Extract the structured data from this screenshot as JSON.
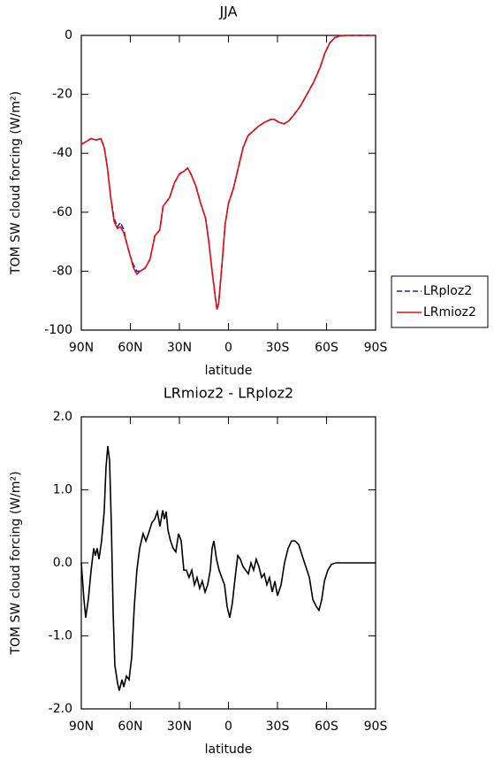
{
  "chart_data": [
    {
      "type": "line",
      "title": "JJA",
      "xlabel": "latitude",
      "ylabel": "TOM SW cloud forcing (W/m²)",
      "xlim": [
        90,
        -90
      ],
      "xticks": [
        {
          "value": 90,
          "label": "90N"
        },
        {
          "value": 60,
          "label": "60N"
        },
        {
          "value": 30,
          "label": "30N"
        },
        0,
        {
          "value": -30,
          "label": "30S"
        },
        {
          "value": -60,
          "label": "60S"
        },
        {
          "value": -90,
          "label": "90S"
        }
      ],
      "ylim": [
        -100,
        0
      ],
      "yticks": [
        0,
        -20,
        -40,
        -60,
        -80,
        -100
      ],
      "legend": "right",
      "x": [
        90,
        87,
        84,
        81,
        78,
        76,
        74,
        72,
        70,
        68,
        66,
        64,
        62,
        60,
        58,
        56,
        54,
        51,
        48,
        45,
        42,
        40,
        36,
        33,
        30,
        27,
        25,
        23,
        20,
        17,
        14,
        12,
        10,
        8,
        7,
        6,
        4,
        2,
        0,
        -3,
        -6,
        -9,
        -12,
        -15,
        -18,
        -22,
        -26,
        -28,
        -31,
        -34,
        -37,
        -40,
        -44,
        -48,
        -52,
        -56,
        -59,
        -62,
        -65,
        -68,
        -72,
        -80,
        -90
      ],
      "series": [
        {
          "name": "LRploz2",
          "color": "#1f1fd0",
          "linestyle": "dashed",
          "values": [
            -37,
            -36,
            -35,
            -35.5,
            -35,
            -38,
            -45,
            -55,
            -62,
            -65,
            -63.5,
            -66,
            -71,
            -75,
            -78,
            -80,
            -80,
            -79,
            -76,
            -68,
            -66,
            -58,
            -55,
            -50,
            -47,
            -46,
            -45,
            -47,
            -51,
            -57,
            -62,
            -70,
            -80,
            -89,
            -93,
            -91,
            -78,
            -64,
            -57,
            -52,
            -45,
            -38,
            -34,
            -32.5,
            -31,
            -29.5,
            -28.5,
            -28.5,
            -29.5,
            -30,
            -29,
            -27,
            -24,
            -20,
            -16,
            -11,
            -6,
            -2.5,
            -0.8,
            -0.2,
            0,
            0,
            0
          ]
        },
        {
          "name": "LRmioz2",
          "color": "#e01010",
          "linestyle": "solid",
          "values": [
            -37,
            -36,
            -35,
            -35.5,
            -35,
            -38,
            -45,
            -55,
            -63,
            -65.5,
            -65,
            -67,
            -71,
            -75,
            -79,
            -81,
            -80,
            -79,
            -76,
            -68,
            -66,
            -58,
            -55,
            -50,
            -47,
            -46,
            -45,
            -47,
            -51,
            -57,
            -62,
            -70,
            -80,
            -89,
            -93,
            -91,
            -78,
            -64,
            -57,
            -52,
            -45,
            -38,
            -34,
            -32.5,
            -31,
            -29.5,
            -28.5,
            -28.5,
            -29.5,
            -30,
            -29,
            -27,
            -24,
            -20,
            -16,
            -11,
            -6,
            -2.5,
            -0.8,
            -0.2,
            0,
            0,
            0
          ]
        }
      ]
    },
    {
      "type": "line",
      "title": "LRmioz2 - LRploz2",
      "xlabel": "latitude",
      "ylabel": "TOM SW cloud forcing (W/m²)",
      "xlim": [
        90,
        -90
      ],
      "xticks": [
        {
          "value": 90,
          "label": "90N"
        },
        {
          "value": 60,
          "label": "60N"
        },
        {
          "value": 30,
          "label": "30N"
        },
        0,
        {
          "value": -30,
          "label": "30S"
        },
        {
          "value": -60,
          "label": "60S"
        },
        {
          "value": -90,
          "label": "90S"
        }
      ],
      "ylim": [
        -2,
        2
      ],
      "yticks": [
        {
          "value": 2,
          "label": "2.0"
        },
        {
          "value": 1,
          "label": "1.0"
        },
        {
          "value": 0,
          "label": "0.0"
        },
        {
          "value": -1,
          "label": "-1.0"
        },
        {
          "value": -2,
          "label": "-2.0"
        }
      ],
      "x": [
        90,
        88.4,
        87.3,
        85.7,
        84,
        82.4,
        81.4,
        80.3,
        79.2,
        77.6,
        76,
        74.9,
        73.8,
        72.7,
        71.6,
        70.5,
        69.5,
        67.8,
        66.8,
        65.1,
        64,
        62.4,
        60.8,
        59.2,
        57.6,
        56,
        54.3,
        52.2,
        50.5,
        48.9,
        46.8,
        45.1,
        43.5,
        41.9,
        40.2,
        39.2,
        38.1,
        37,
        35.4,
        33.8,
        32.2,
        30.5,
        28.9,
        27.3,
        25.7,
        24.1,
        22.4,
        20.8,
        19.2,
        17.6,
        16,
        14.3,
        12.7,
        11.1,
        10,
        8.9,
        7.3,
        5.7,
        4.1,
        2.4,
        0.8,
        -0.8,
        -2.4,
        -4.1,
        -5.7,
        -7.3,
        -8.9,
        -10.5,
        -12.2,
        -13.8,
        -15.4,
        -17,
        -18.6,
        -20.3,
        -21.9,
        -23.5,
        -25.1,
        -26.8,
        -28.4,
        -30,
        -32.2,
        -34.3,
        -36.5,
        -38.6,
        -40.8,
        -43,
        -45.1,
        -47.3,
        -49.5,
        -51.6,
        -53.8,
        -55.4,
        -57.1,
        -58.7,
        -60.8,
        -63,
        -65.7,
        -71,
        -90
      ],
      "series": [
        {
          "color": "#000000",
          "linestyle": "solid",
          "values": [
            0,
            -0.5,
            -0.75,
            -0.5,
            -0.1,
            0.2,
            0.1,
            0.2,
            0.05,
            0.3,
            0.7,
            1.3,
            1.6,
            1.4,
            0.5,
            -0.7,
            -1.4,
            -1.65,
            -1.75,
            -1.6,
            -1.7,
            -1.55,
            -1.6,
            -1.3,
            -0.6,
            -0.1,
            0.2,
            0.4,
            0.3,
            0.4,
            0.55,
            0.6,
            0.7,
            0.5,
            0.72,
            0.6,
            0.7,
            0.45,
            0.3,
            0.2,
            0.15,
            0.4,
            0.3,
            -0.1,
            -0.1,
            -0.2,
            -0.1,
            -0.3,
            -0.2,
            -0.35,
            -0.25,
            -0.4,
            -0.3,
            -0.1,
            0.2,
            0.3,
            0.05,
            -0.1,
            -0.2,
            -0.3,
            -0.6,
            -0.75,
            -0.55,
            -0.2,
            0.1,
            0.05,
            -0.05,
            -0.1,
            -0.15,
            0,
            -0.1,
            0.05,
            -0.05,
            -0.2,
            -0.15,
            -0.3,
            -0.2,
            -0.4,
            -0.25,
            -0.45,
            -0.3,
            0,
            0.2,
            0.3,
            0.3,
            0.25,
            0.1,
            -0.05,
            -0.2,
            -0.5,
            -0.6,
            -0.65,
            -0.5,
            -0.25,
            -0.1,
            -0.02,
            0,
            0,
            0
          ]
        }
      ]
    }
  ]
}
